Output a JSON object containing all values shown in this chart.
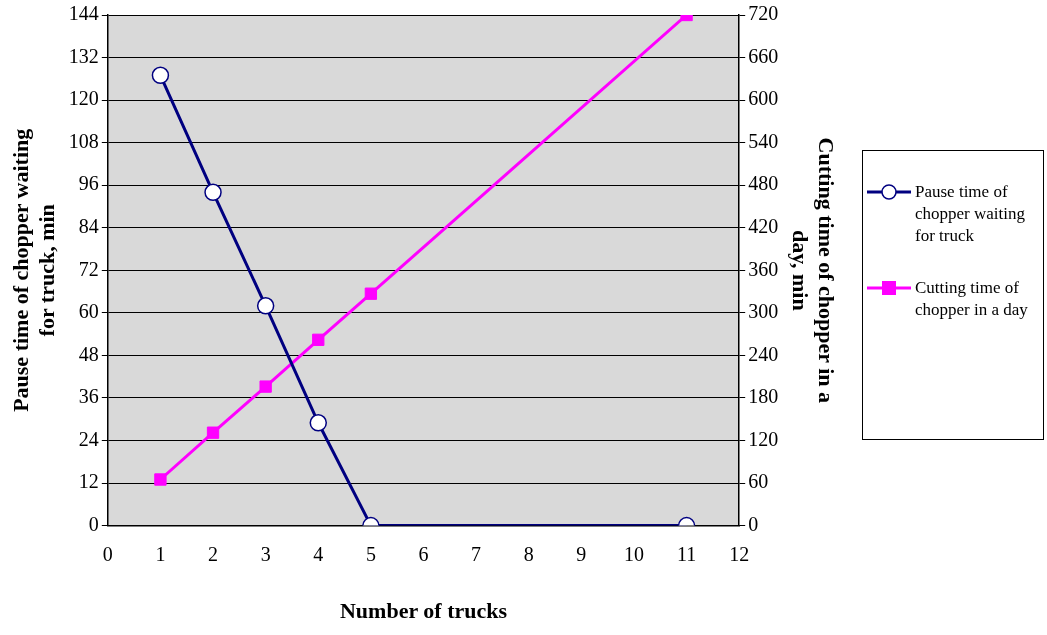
{
  "chart_data": {
    "type": "line",
    "xlabel": "Number of trucks",
    "ylabel": "Pause time of chopper waiting for truck, min",
    "y2label": "Cutting time of chopper in a day, min",
    "x": [
      1,
      2,
      3,
      4,
      5,
      11
    ],
    "series": [
      {
        "name": "Pause time of chopper waiting for truck",
        "color": "#000080",
        "values": [
          127,
          94,
          62,
          29,
          0,
          0
        ],
        "marker": "circle"
      },
      {
        "name": "Cutting time of chopper in a day",
        "color": "#ff00ff",
        "values": [
          65,
          131,
          196,
          262,
          327,
          720
        ],
        "axis": "y2",
        "marker": "square"
      }
    ],
    "xlim": [
      0,
      12
    ],
    "xticks": [
      0,
      1,
      2,
      3,
      4,
      5,
      6,
      7,
      8,
      9,
      10,
      11,
      12
    ],
    "ylim": [
      0,
      144
    ],
    "yticks": [
      0,
      12,
      24,
      36,
      48,
      60,
      72,
      84,
      96,
      108,
      120,
      132,
      144
    ],
    "y2lim": [
      0,
      720
    ],
    "y2ticks": [
      0,
      60,
      120,
      180,
      240,
      300,
      360,
      420,
      480,
      540,
      600,
      660,
      720
    ],
    "grid": "y",
    "legend": "right",
    "line_style": "solid"
  }
}
